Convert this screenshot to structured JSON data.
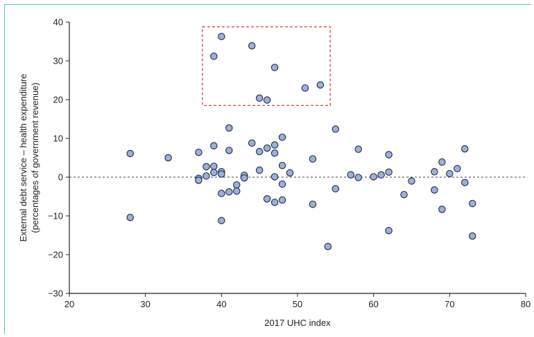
{
  "chart_data": {
    "type": "scatter",
    "xlabel": "2017 UHC index",
    "ylabel_line1": "External debt service – health expenditure",
    "ylabel_line2": "(percentages of government revenue)",
    "xlim": [
      20,
      80
    ],
    "ylim": [
      -30,
      40
    ],
    "xticks": [
      20,
      30,
      40,
      50,
      60,
      70,
      80
    ],
    "yticks": [
      -30,
      -20,
      -10,
      0,
      10,
      20,
      30,
      40
    ],
    "ytick_labels": [
      "−30",
      "−20",
      "−10",
      "0",
      "10",
      "20",
      "30",
      "40"
    ],
    "reference_line_y": 0,
    "highlight_box": {
      "x": [
        37.5,
        54.3
      ],
      "y": [
        18.5,
        38.8
      ]
    },
    "colors": {
      "point_fill": "#9fb0d6",
      "point_stroke": "#1b2a4a",
      "highlight": "#e03a3a",
      "frame": "#5ec8c4",
      "axis": "#222222"
    },
    "points": [
      {
        "x": 28,
        "y": 6.1
      },
      {
        "x": 28,
        "y": -10.4
      },
      {
        "x": 33,
        "y": 5.0
      },
      {
        "x": 37,
        "y": 6.4
      },
      {
        "x": 37,
        "y": -0.3
      },
      {
        "x": 37,
        "y": -0.8
      },
      {
        "x": 38,
        "y": 2.7
      },
      {
        "x": 38,
        "y": 0.3
      },
      {
        "x": 39,
        "y": 31.2
      },
      {
        "x": 39,
        "y": 8.1
      },
      {
        "x": 39,
        "y": 2.8
      },
      {
        "x": 39,
        "y": 1.2
      },
      {
        "x": 40,
        "y": 36.3
      },
      {
        "x": 40,
        "y": 1.4
      },
      {
        "x": 40,
        "y": 0.8
      },
      {
        "x": 40,
        "y": -4.2
      },
      {
        "x": 40,
        "y": -11.2
      },
      {
        "x": 41,
        "y": 12.7
      },
      {
        "x": 41,
        "y": 6.9
      },
      {
        "x": 41,
        "y": -3.8
      },
      {
        "x": 42,
        "y": -2.0
      },
      {
        "x": 42,
        "y": -3.6
      },
      {
        "x": 43,
        "y": 0.5
      },
      {
        "x": 43,
        "y": -0.2
      },
      {
        "x": 44,
        "y": 33.9
      },
      {
        "x": 44,
        "y": 8.8
      },
      {
        "x": 45,
        "y": 20.4
      },
      {
        "x": 45,
        "y": 6.6
      },
      {
        "x": 45,
        "y": 1.8
      },
      {
        "x": 46,
        "y": 19.9
      },
      {
        "x": 46,
        "y": 7.5
      },
      {
        "x": 46,
        "y": -5.6
      },
      {
        "x": 47,
        "y": 28.3
      },
      {
        "x": 47,
        "y": 8.3
      },
      {
        "x": 47,
        "y": 6.2
      },
      {
        "x": 47,
        "y": 0.1
      },
      {
        "x": 47,
        "y": -6.5
      },
      {
        "x": 48,
        "y": 10.3
      },
      {
        "x": 48,
        "y": 3.0
      },
      {
        "x": 48,
        "y": -1.8
      },
      {
        "x": 48,
        "y": -5.9
      },
      {
        "x": 49,
        "y": 1.1
      },
      {
        "x": 51,
        "y": 23.0
      },
      {
        "x": 52,
        "y": 4.7
      },
      {
        "x": 52,
        "y": -7.0
      },
      {
        "x": 53,
        "y": 23.8
      },
      {
        "x": 54,
        "y": -17.9
      },
      {
        "x": 55,
        "y": 12.4
      },
      {
        "x": 55,
        "y": -3.0
      },
      {
        "x": 57,
        "y": 0.6
      },
      {
        "x": 58,
        "y": 7.2
      },
      {
        "x": 58,
        "y": -0.1
      },
      {
        "x": 60,
        "y": 0.1
      },
      {
        "x": 61,
        "y": 0.6
      },
      {
        "x": 62,
        "y": 5.8
      },
      {
        "x": 62,
        "y": 1.3
      },
      {
        "x": 62,
        "y": -13.8
      },
      {
        "x": 64,
        "y": -4.5
      },
      {
        "x": 65,
        "y": -1.0
      },
      {
        "x": 68,
        "y": 1.4
      },
      {
        "x": 68,
        "y": -3.3
      },
      {
        "x": 69,
        "y": 3.9
      },
      {
        "x": 69,
        "y": -8.3
      },
      {
        "x": 70,
        "y": 0.9
      },
      {
        "x": 71,
        "y": 2.2
      },
      {
        "x": 72,
        "y": 7.3
      },
      {
        "x": 72,
        "y": -1.4
      },
      {
        "x": 73,
        "y": -6.8
      },
      {
        "x": 73,
        "y": -15.2
      }
    ]
  }
}
